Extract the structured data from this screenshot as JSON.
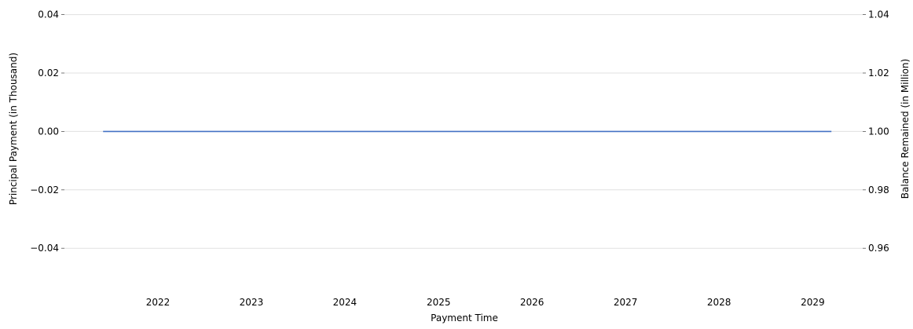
{
  "chart_data": {
    "type": "line",
    "xlabel": "Payment Time",
    "ylabel_left": "Principal Payment (in Thousand)",
    "ylabel_right": "Balance Remained (in Million)",
    "x_range": [
      "2021-01-01",
      "2029-07-15"
    ],
    "x_ticks": [
      "2022",
      "2023",
      "2024",
      "2025",
      "2026",
      "2027",
      "2028",
      "2029"
    ],
    "ylim_left": [
      -0.055,
      0.045
    ],
    "yticks_left": [
      -0.04,
      -0.02,
      0.0,
      0.02,
      0.04
    ],
    "ytick_labels_left": [
      "−0.04",
      "−0.02",
      "0.00",
      "0.02",
      "0.04"
    ],
    "ylim_right": [
      0.945,
      1.045
    ],
    "yticks_right": [
      0.96,
      0.98,
      1.0,
      1.02,
      1.04
    ],
    "ytick_labels_right": [
      "0.96",
      "0.98",
      "1.00",
      "1.02",
      "1.04"
    ],
    "grid": "horizontal",
    "series": [
      {
        "axis": "left",
        "color": "#4472C4",
        "x": [
          "2021-06-01",
          "2029-03-15"
        ],
        "values": [
          0.0,
          0.0
        ]
      }
    ]
  }
}
